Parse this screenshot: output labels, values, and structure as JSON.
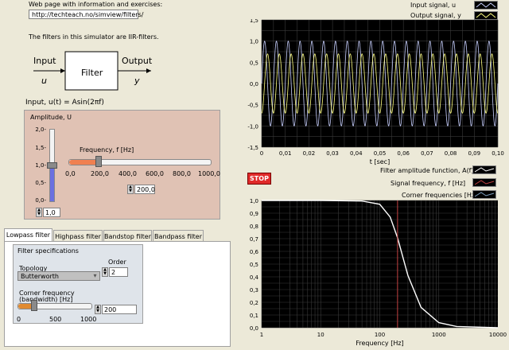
{
  "info": {
    "web_label": "Web page with information and exercises:",
    "url": "http://techteach.no/simview/filters/",
    "iir_note": "The filters in this simulator are IIR-filters."
  },
  "diagram": {
    "input_label": "Input",
    "input_symbol": "u",
    "filter_label": "Filter",
    "output_label": "Output",
    "output_symbol": "y"
  },
  "input_title": "Input, u(t) = Asin(2πf)",
  "amplitude": {
    "label": "Amplitude, U",
    "ticks": [
      "2,0-",
      "1,5-",
      "1,0-",
      "0,5-",
      "0,0-"
    ],
    "value": "1,0",
    "level": 1.0
  },
  "frequency": {
    "label": "Frequency, f [Hz]",
    "ticks": [
      "0,0",
      "200,0",
      "400,0",
      "600,0",
      "800,0",
      "1000,0"
    ],
    "value": "200,0",
    "level": 200
  },
  "tabs": [
    "Lowpass filter",
    "Highpass filter",
    "Bandstop filter",
    "Bandpass filter"
  ],
  "filter_spec": {
    "title": "Filter specifications",
    "topology_label": "Topology",
    "topology_value": "Butterworth",
    "order_label": "Order",
    "order_value": "2",
    "corner_label_1": "Corner frequency",
    "corner_label_2": "(bandwidth) [Hz]",
    "corner_value": "200",
    "corner_ticks": [
      "0",
      "500",
      "1000"
    ],
    "corner_level": 200
  },
  "top_chart": {
    "legend": [
      "Input signal, u",
      "Output signal, y"
    ],
    "yticks": [
      "1,5",
      "1,0",
      "0,5",
      "0,0",
      "-0,5",
      "-1,0",
      "-1,5"
    ],
    "xticks": [
      "0",
      "0,01",
      "0,02",
      "0,03",
      "0,04",
      "0,05",
      "0,06",
      "0,07",
      "0,08",
      "0,09",
      "0,10"
    ],
    "xlabel": "t [sec]"
  },
  "stop_label": "STOP",
  "bottom_legend": [
    "Filter amplitude function, A(f)",
    "Signal frequency, f [Hz]",
    "Corner frequencies [Hz]"
  ],
  "bottom_chart": {
    "yticks": [
      "1,0",
      "0,9",
      "0,8",
      "0,7",
      "0,6",
      "0,5",
      "0,4",
      "0,3",
      "0,2",
      "0,1",
      "0,0"
    ],
    "xticks": [
      "1",
      "10",
      "100",
      "1000",
      "10000"
    ],
    "xlabel": "Frequency [Hz]"
  },
  "colors": {
    "input_signal": "#c8d0ff",
    "output_signal": "#ffff80",
    "amplitude_fn": "#ffffff",
    "signal_freq": "#c04040",
    "plot_bg": "#000000",
    "panel_bg": "#e0c2b4"
  },
  "chart_data": [
    {
      "type": "line",
      "xlabel": "t [sec]",
      "ylabel": "",
      "xlim": [
        0,
        0.1
      ],
      "ylim": [
        -1.5,
        1.5
      ],
      "grid": true,
      "legend": "top-right",
      "series": [
        {
          "name": "Input signal, u",
          "function": "sin(2π·200·t)",
          "amplitude": 1.0,
          "frequency": 200
        },
        {
          "name": "Output signal, y",
          "function": "0.7·sin(2π·200·t − 1.57)",
          "amplitude": 0.7,
          "frequency": 200
        }
      ]
    },
    {
      "type": "line",
      "xlabel": "Frequency [Hz]",
      "ylabel": "",
      "xscale": "log",
      "xlim": [
        1,
        10000
      ],
      "ylim": [
        0,
        1
      ],
      "grid": true,
      "legend": "top-right",
      "series": [
        {
          "name": "Filter amplitude function, A(f)",
          "x": [
            1,
            10,
            50,
            100,
            150,
            200,
            300,
            500,
            1000,
            2000,
            10000
          ],
          "y": [
            1.0,
            1.0,
            0.996,
            0.97,
            0.87,
            0.707,
            0.41,
            0.16,
            0.04,
            0.01,
            0.0
          ]
        },
        {
          "name": "Signal frequency, f [Hz]",
          "x": [
            200,
            200
          ],
          "y": [
            0,
            1
          ]
        }
      ]
    }
  ]
}
